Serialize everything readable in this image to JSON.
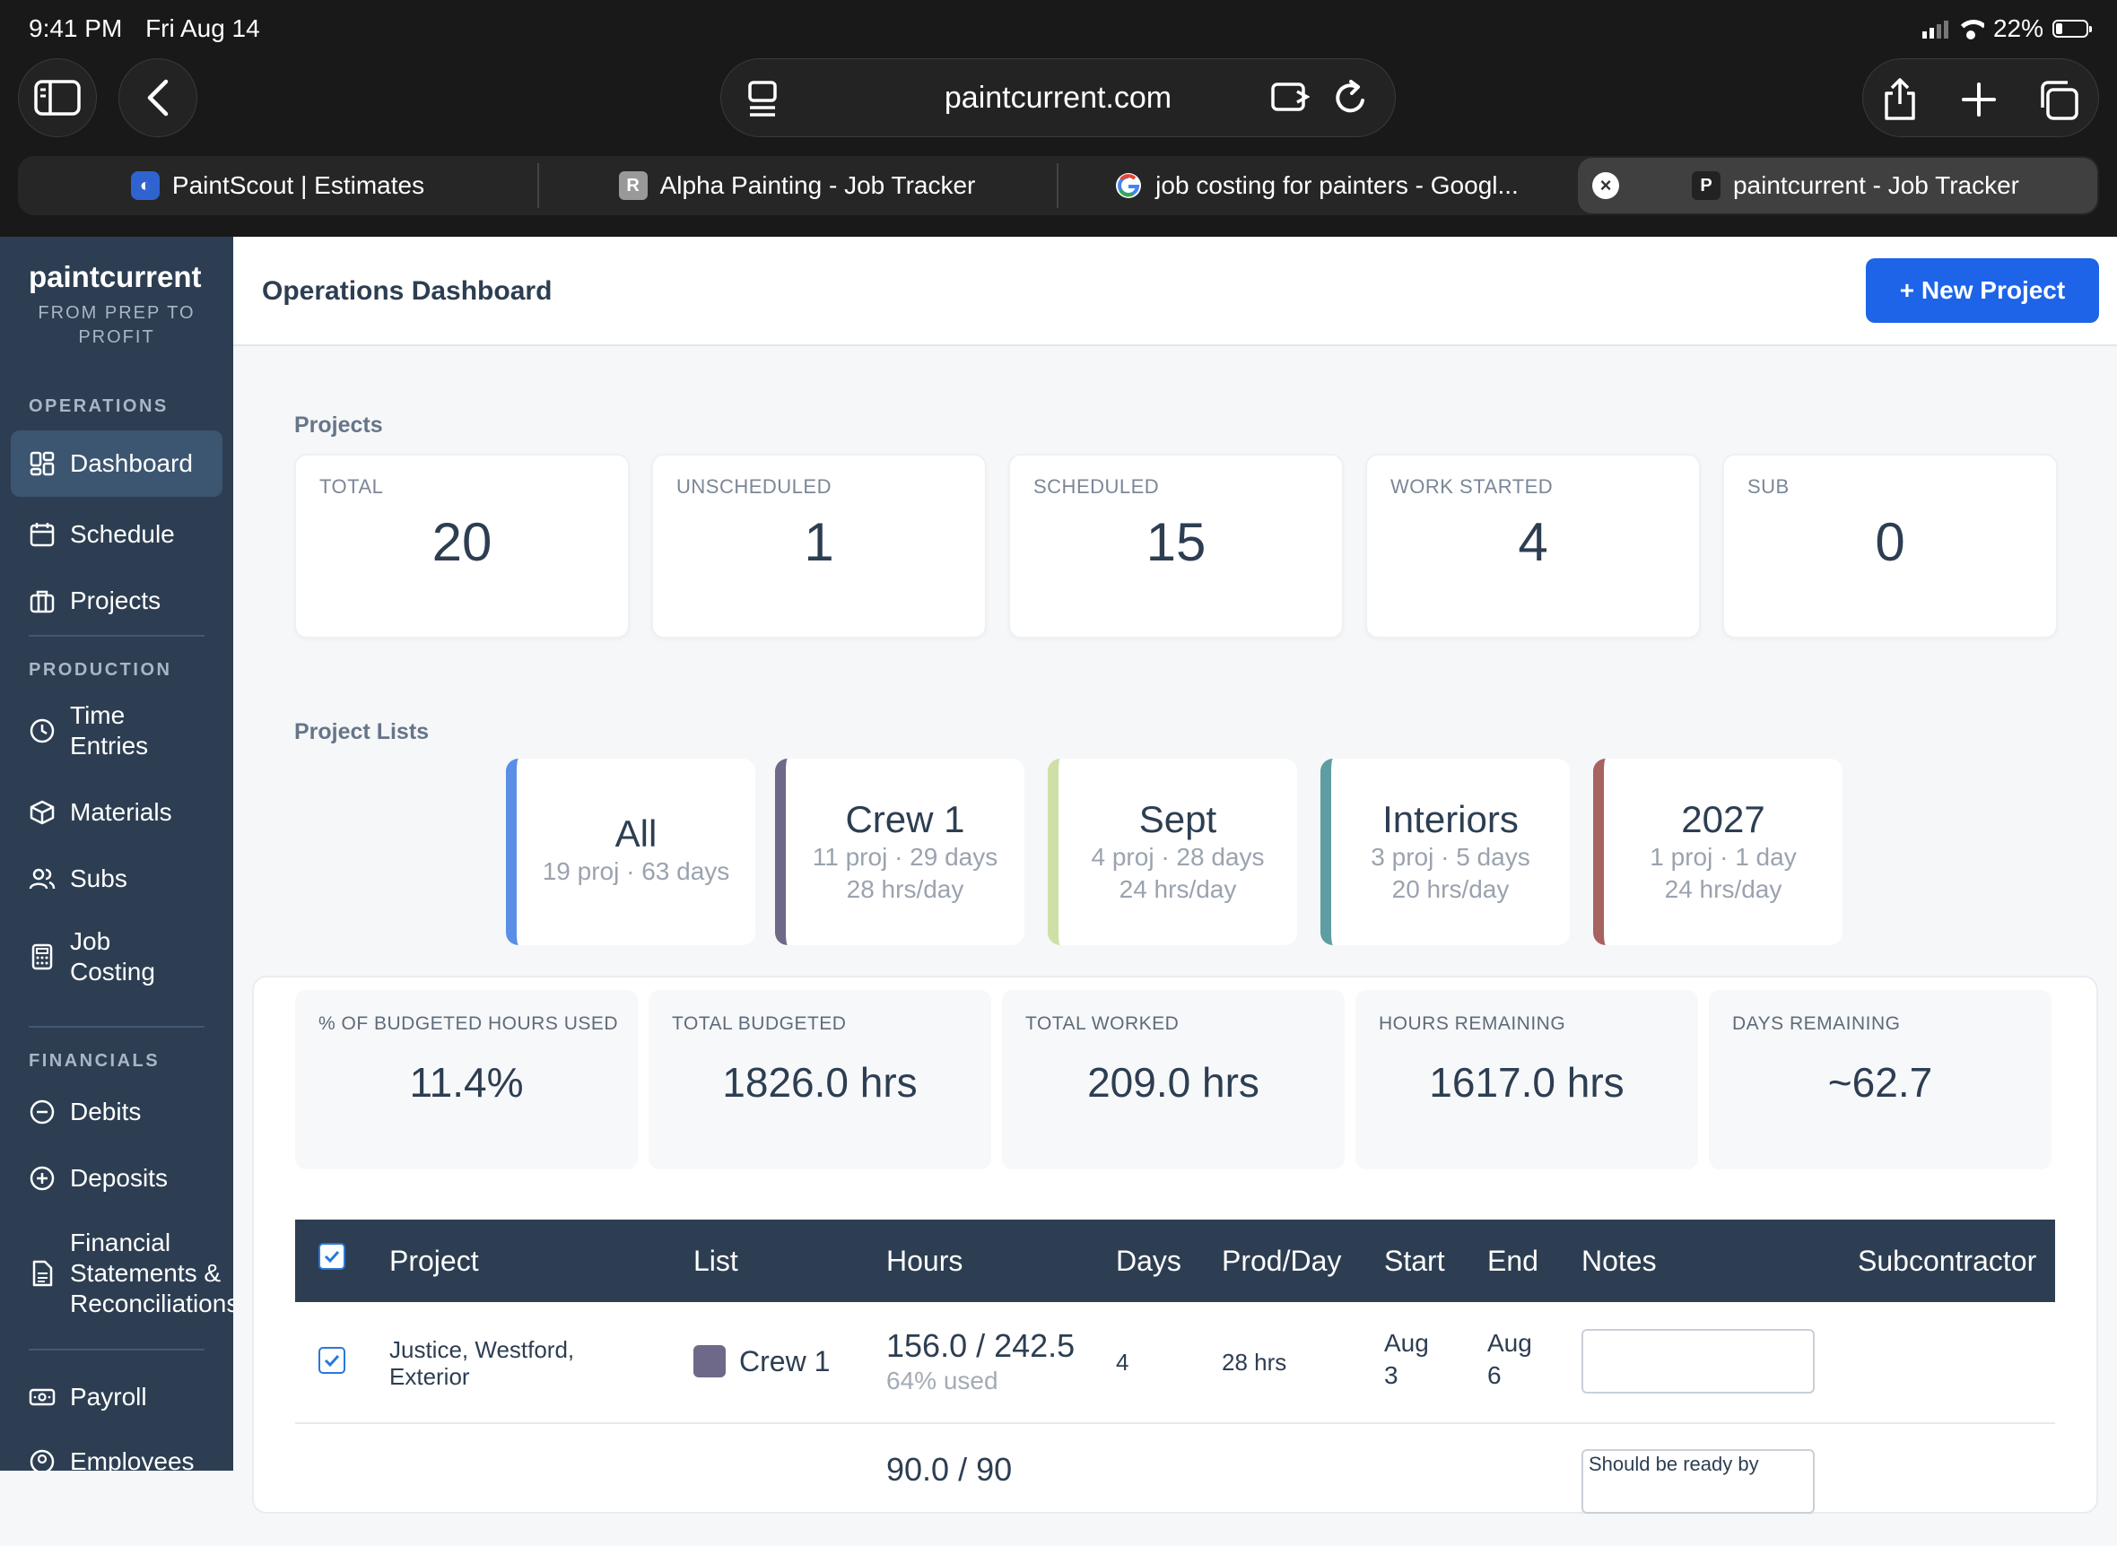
{
  "status_bar": {
    "time": "9:41 PM",
    "date": "Fri Aug 14",
    "battery": "22%",
    "battery_level": 0.22
  },
  "browser": {
    "url": "paintcurrent.com",
    "tabs": [
      {
        "label": "PaintScout | Estimates",
        "icon": "paintscout-favicon"
      },
      {
        "label": "Alpha Painting - Job Tracker",
        "icon_letter": "R"
      },
      {
        "label": "job costing for painters - Googl...",
        "icon": "google-favicon"
      },
      {
        "label": "paintcurrent - Job Tracker",
        "icon_letter": "P",
        "active": true
      }
    ]
  },
  "sidebar": {
    "brand": "paintcurrent",
    "tagline": "FROM PREP TO PROFIT",
    "sections": {
      "operations": "OPERATIONS",
      "production": "PRODUCTION",
      "financials": "FINANCIALS"
    },
    "items": {
      "dashboard": "Dashboard",
      "schedule": "Schedule",
      "projects": "Projects",
      "time_entries": "Time Entries",
      "materials": "Materials",
      "subs": "Subs",
      "job_costing": "Job Costing",
      "debits": "Debits",
      "deposits": "Deposits",
      "financial_statements": "Financial Statements & Reconciliations",
      "payroll": "Payroll",
      "employees": "Employees"
    }
  },
  "header": {
    "title": "Operations Dashboard",
    "new_project": "+ New Project"
  },
  "projects": {
    "label": "Projects",
    "stats": [
      {
        "key": "TOTAL",
        "value": "20"
      },
      {
        "key": "UNSCHEDULED",
        "value": "1"
      },
      {
        "key": "SCHEDULED",
        "value": "15"
      },
      {
        "key": "WORK STARTED",
        "value": "4"
      },
      {
        "key": "SUB",
        "value": "0"
      }
    ]
  },
  "project_lists": {
    "label": "Project Lists",
    "lists": [
      {
        "name": "All",
        "line1": "19 proj · 63 days",
        "line2": "",
        "color": "#5b8ee6"
      },
      {
        "name": "Crew 1",
        "line1": "11 proj · 29 days",
        "line2": "28 hrs/day",
        "color": "#6e6889"
      },
      {
        "name": "Sept",
        "line1": "4 proj · 28 days",
        "line2": "24 hrs/day",
        "color": "#cfe0a6"
      },
      {
        "name": "Interiors",
        "line1": "3 proj · 5 days",
        "line2": "20 hrs/day",
        "color": "#5e9ea2"
      },
      {
        "name": "2027",
        "line1": "1 proj · 1 day",
        "line2": "24 hrs/day",
        "color": "#a8625f"
      }
    ]
  },
  "metrics": [
    {
      "key": "% OF BUDGETED HOURS USED",
      "value": "11.4%"
    },
    {
      "key": "TOTAL BUDGETED",
      "value": "1826.0 hrs"
    },
    {
      "key": "TOTAL WORKED",
      "value": "209.0 hrs"
    },
    {
      "key": "HOURS REMAINING",
      "value": "1617.0 hrs"
    },
    {
      "key": "DAYS REMAINING",
      "value": "~62.7"
    }
  ],
  "table": {
    "columns": [
      "Project",
      "List",
      "Hours",
      "Days",
      "Prod/Day",
      "Start",
      "End",
      "Notes",
      "Subcontractor"
    ],
    "rows": [
      {
        "project": "Justice, Westford, Exterior",
        "list": "Crew 1",
        "list_color": "#6e6889",
        "hours": "156.0 / 242.5",
        "used": "64% used",
        "days": "4",
        "prod": "28 hrs",
        "start": "Aug 3",
        "end": "Aug 6",
        "notes": "",
        "subcontractor": ""
      }
    ],
    "next_row_partial": {
      "hours": "90.0 / 90",
      "notes": "Should be ready by"
    }
  }
}
